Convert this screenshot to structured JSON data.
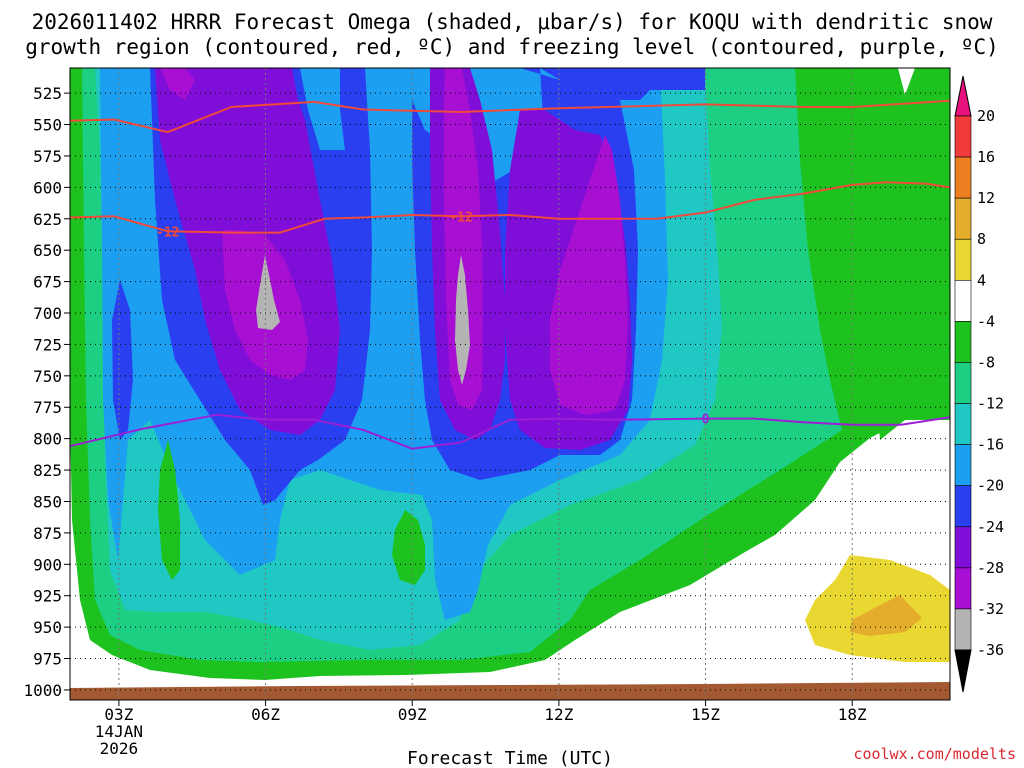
{
  "chart_data": {
    "type": "heatmap",
    "title_line1": "2026011402 HRRR Forecast Omega (shaded, μbar/s) for KOQU with dendritic snow",
    "title_line2": "growth region (contoured, red, ºC) and freezing level (contoured, purple, ºC)",
    "xlabel": "Forecast Time (UTC)",
    "credit": "coolwx.com/modelts",
    "x_ticks": [
      {
        "hour": 3,
        "label": "03Z",
        "sub1": "14JAN",
        "sub2": "2026"
      },
      {
        "hour": 6,
        "label": "06Z"
      },
      {
        "hour": 9,
        "label": "09Z"
      },
      {
        "hour": 12,
        "label": "12Z"
      },
      {
        "hour": 15,
        "label": "15Z"
      },
      {
        "hour": 18,
        "label": "18Z"
      }
    ],
    "xlim": [
      2,
      20
    ],
    "y_ticks": [
      525,
      550,
      575,
      600,
      625,
      650,
      675,
      700,
      725,
      750,
      775,
      800,
      825,
      850,
      875,
      900,
      925,
      950,
      975,
      1000
    ],
    "ylim_hPa": [
      505,
      1008
    ],
    "colorbar": {
      "labels": [
        "20",
        "16",
        "12",
        "8",
        "4",
        "-4",
        "-8",
        "-12",
        "-16",
        "-20",
        "-24",
        "-28",
        "-32",
        "-36"
      ],
      "bins": [
        {
          "range": ">20",
          "color": "#e8127e"
        },
        {
          "range": "16 to 20",
          "color": "#f13a3a"
        },
        {
          "range": "12 to 16",
          "color": "#ee7e22"
        },
        {
          "range": "8 to 12",
          "color": "#e4ad2b"
        },
        {
          "range": "4 to 8",
          "color": "#ead832"
        },
        {
          "range": "-4 to 4",
          "color": "#ffffff"
        },
        {
          "range": "-8 to -4",
          "color": "#1ec21e"
        },
        {
          "range": "-12 to -8",
          "color": "#1ccf83"
        },
        {
          "range": "-16 to -12",
          "color": "#20c8c4"
        },
        {
          "range": "-20 to -16",
          "color": "#1c9ff0"
        },
        {
          "range": "-24 to -20",
          "color": "#2a3ff0"
        },
        {
          "range": "-28 to -24",
          "color": "#7f0fd8"
        },
        {
          "range": "-32 to -28",
          "color": "#a70fd3"
        },
        {
          "range": "-36 to -32",
          "color": "#b4b4b4"
        },
        {
          "range": "<-36",
          "color": "#000000"
        }
      ]
    },
    "contours": [
      {
        "name": "-10C isotherm",
        "color": "#ef4a3a",
        "label": "",
        "points": [
          [
            2,
            547
          ],
          [
            2.9,
            546
          ],
          [
            4.0,
            556
          ],
          [
            5.3,
            536
          ],
          [
            7,
            532
          ],
          [
            8,
            538
          ],
          [
            10,
            540
          ],
          [
            12,
            537
          ],
          [
            15,
            534
          ],
          [
            17,
            536
          ],
          [
            18,
            536
          ],
          [
            20,
            531
          ]
        ]
      },
      {
        "name": "-12C isotherm",
        "color": "#ef4a3a",
        "label": "-12",
        "label_hour": 4.0,
        "points": [
          [
            2,
            624
          ],
          [
            2.9,
            623
          ],
          [
            4,
            635
          ],
          [
            5.3,
            636
          ],
          [
            6.3,
            636
          ],
          [
            7.2,
            625
          ],
          [
            8,
            624
          ],
          [
            9,
            622
          ],
          [
            10,
            623
          ],
          [
            11,
            622
          ],
          [
            12,
            625
          ],
          [
            14,
            625
          ],
          [
            15,
            620
          ],
          [
            16,
            610
          ],
          [
            17,
            605
          ],
          [
            18,
            598
          ],
          [
            18.7,
            596
          ],
          [
            19.5,
            597
          ],
          [
            20,
            600
          ]
        ]
      },
      {
        "name": "0C freezing level",
        "color": "#9b1fd6",
        "label": "0",
        "label_hour": 15,
        "points": [
          [
            2,
            806
          ],
          [
            3.5,
            792
          ],
          [
            5,
            781
          ],
          [
            6,
            785
          ],
          [
            7,
            785
          ],
          [
            8,
            793
          ],
          [
            9,
            808
          ],
          [
            10,
            803
          ],
          [
            11,
            785
          ],
          [
            12,
            784
          ],
          [
            13,
            785
          ],
          [
            15,
            784
          ],
          [
            16,
            784
          ],
          [
            17,
            787
          ],
          [
            18,
            789
          ],
          [
            19,
            789
          ],
          [
            20,
            783
          ]
        ]
      }
    ]
  }
}
